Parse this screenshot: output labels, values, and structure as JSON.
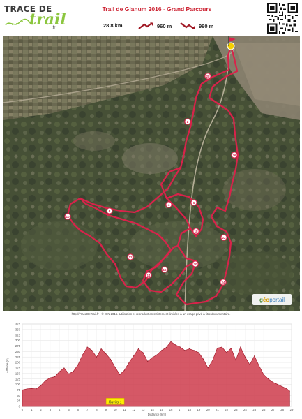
{
  "header": {
    "logo_text": "TRACE DE",
    "logo_script": "trail",
    "logo_tld": ".fr",
    "title": "Trail de Glanum 2016 - Grand Parcours",
    "distance": "28,8 km",
    "elevation_gain": "960 m",
    "elevation_loss": "960 m"
  },
  "map": {
    "markers": [
      "28",
      "2",
      "26",
      "4",
      "6",
      "8",
      "10",
      "12",
      "14",
      "16",
      "18",
      "20",
      "22",
      "24"
    ],
    "provider": {
      "part1": "g",
      "part2": "éo",
      "part3": "portail"
    }
  },
  "copyright": "http://TraceDeTrail.fr - © IGN 2015. Utilisation et reproduction strictement limitées à un usage privé à titre documentaire.",
  "colors": {
    "title": "#cc1f2f",
    "track": "#d8234a",
    "profile_fill": "#cc3344",
    "logo_green": "#8cc63f"
  },
  "chart_data": {
    "type": "area",
    "title": "",
    "xlabel": "Distance (km)",
    "ylabel": "Altitude (m)",
    "xlim": [
      0,
      29
    ],
    "ylim": [
      0,
      375
    ],
    "x_ticks": [
      "0",
      "1",
      "2",
      "3",
      "4",
      "5",
      "6",
      "7",
      "8",
      "9",
      "10",
      "11",
      "12",
      "13",
      "14",
      "15",
      "16",
      "17",
      "18",
      "19",
      "20",
      "21",
      "22",
      "23",
      "24",
      "25",
      "26",
      "27",
      "28",
      "29"
    ],
    "y_ticks": [
      "0",
      "25",
      "50",
      "75",
      "100",
      "125",
      "150",
      "175",
      "200",
      "225",
      "250",
      "275",
      "300",
      "325",
      "350",
      "375"
    ],
    "x": [
      0,
      0.5,
      1,
      1.5,
      2,
      2.5,
      3,
      3.5,
      4,
      4.5,
      5,
      5.5,
      6,
      6.5,
      7,
      7.5,
      8,
      8.5,
      9,
      9.5,
      10,
      10.5,
      11,
      11.5,
      12,
      12.5,
      13,
      13.5,
      14,
      14.5,
      15,
      15.5,
      16,
      16.5,
      17,
      17.5,
      18,
      18.5,
      19,
      19.5,
      20,
      20.5,
      21,
      21.5,
      22,
      22.5,
      23,
      23.5,
      24,
      24.5,
      25,
      25.5,
      26,
      26.5,
      27,
      27.5,
      28,
      28.5,
      28.8
    ],
    "altitude": [
      75,
      80,
      82,
      80,
      95,
      118,
      130,
      135,
      158,
      175,
      148,
      160,
      190,
      235,
      270,
      255,
      225,
      262,
      240,
      215,
      178,
      145,
      165,
      200,
      230,
      262,
      245,
      205,
      222,
      235,
      255,
      268,
      295,
      280,
      270,
      255,
      262,
      255,
      245,
      215,
      175,
      210,
      265,
      270,
      245,
      265,
      210,
      270,
      225,
      190,
      230,
      185,
      145,
      125,
      110,
      100,
      90,
      80,
      70
    ],
    "annotation": "Ravito 1",
    "annotation_x": 10
  }
}
